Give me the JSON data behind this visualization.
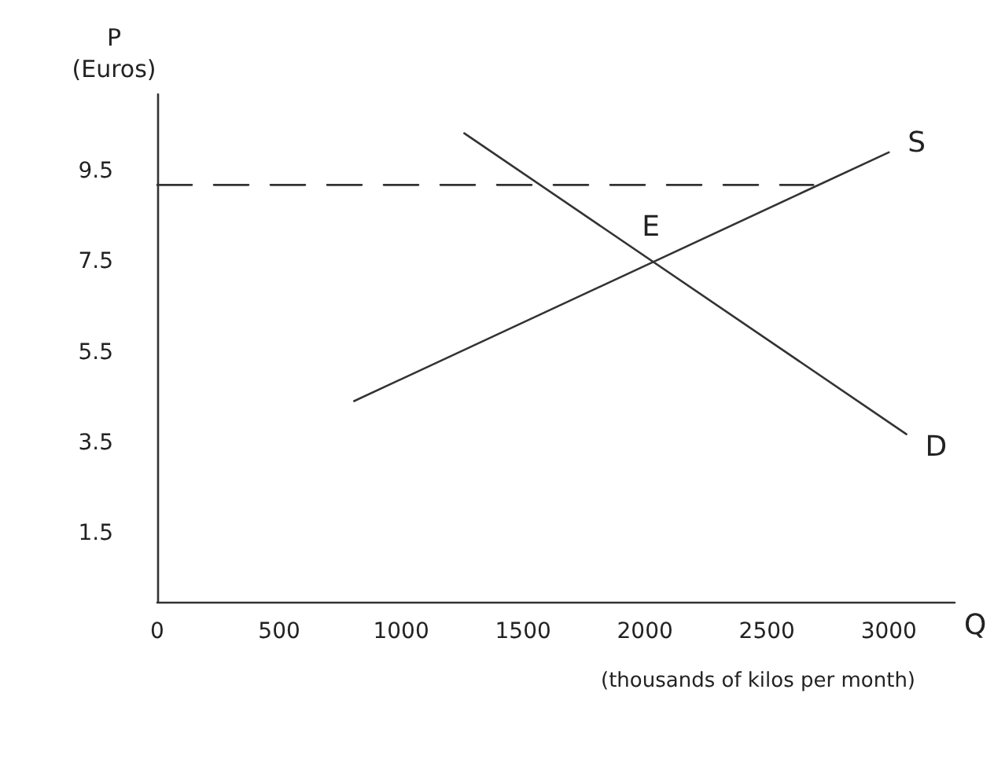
{
  "chart_data": {
    "type": "line",
    "ylabel": "P\n(Euros)",
    "xlabel": "Q",
    "xlim": [
      0,
      3270
    ],
    "xticks": [
      0,
      500,
      1000,
      1500,
      2000,
      2500,
      3000
    ],
    "ylim": [
      0,
      11.2
    ],
    "yticks": [
      1.5,
      3.5,
      5.5,
      7.5,
      9.5
    ],
    "grid": false,
    "legend": false,
    "marker": "none",
    "series": [
      {
        "name": "S",
        "color": "#333333",
        "x": [
          807,
          3000
        ],
        "values": [
          4.43,
          9.92
        ]
      },
      {
        "name": "D",
        "color": "#333333",
        "x": [
          1259,
          3072
        ],
        "values": [
          10.34,
          3.7
        ]
      },
      {
        "color": "#333333",
        "line_style": "dashed",
        "x": [
          0,
          2690
        ],
        "values": [
          9.2,
          9.2
        ]
      }
    ],
    "annotations": [
      {
        "text": "E",
        "x": 2024,
        "y": 7.5
      },
      "(thousands of kilos per month)"
    ]
  }
}
